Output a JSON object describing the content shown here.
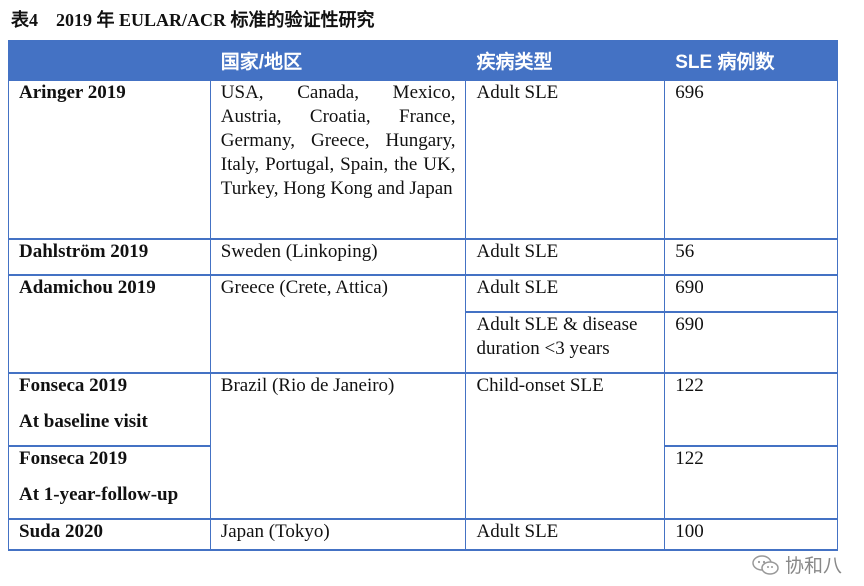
{
  "title": "表4　2019 年 EULAR/ACR 标准的验证性研究",
  "headers": [
    "",
    "国家/地区",
    "疾病类型",
    "SLE 病例数"
  ],
  "rows": {
    "aringer": {
      "name": "Aringer 2019",
      "country": "USA, Canada, Mexico, Austria, Croatia, France, Germany, Greece, Hungary, Italy, Portugal, Spain, the UK, Turkey, Hong Kong and Japan",
      "type": "Adult SLE",
      "count": "696"
    },
    "dahlstrom": {
      "name": "Dahlström 2019",
      "country": "Sweden (Linkoping)",
      "type": "Adult SLE",
      "count": "56"
    },
    "adamichou": {
      "name": "Adamichou 2019",
      "country": "Greece (Crete, Attica)",
      "type1": "Adult SLE",
      "count1": "690",
      "type2": "Adult SLE & disease duration <3 years",
      "count2": "690"
    },
    "fonseca1": {
      "name": "Fonseca 2019",
      "sub": "At baseline visit",
      "country": "Brazil (Rio de Janeiro)",
      "type": "Child-onset SLE",
      "count": "122"
    },
    "fonseca2": {
      "name": "Fonseca 2019",
      "sub": "At 1-year-follow-up",
      "count": "122"
    },
    "suda": {
      "name": "Suda 2020",
      "country": "Japan (Tokyo)",
      "type": "Adult SLE",
      "count": "100"
    }
  },
  "watermark": {
    "text": "协和八",
    "icon": "wechat-icon"
  }
}
